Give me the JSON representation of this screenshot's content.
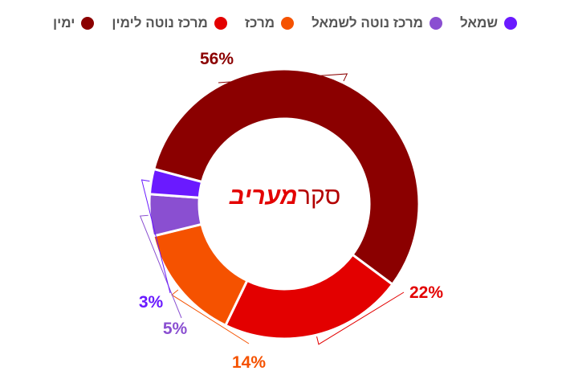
{
  "chart_data": {
    "type": "pie",
    "subtype": "donut",
    "center_label": {
      "word": "סקר",
      "brand": "מעריב"
    },
    "slices": [
      {
        "name": "ימין",
        "value": 56,
        "label": "56%",
        "color": "#8b0000"
      },
      {
        "name": "מרכז נוטה לימין",
        "value": 22,
        "label": "22%",
        "color": "#e30000"
      },
      {
        "name": "מרכז",
        "value": 14,
        "label": "14%",
        "color": "#f55200"
      },
      {
        "name": "מרכז נוטה לשמאל",
        "value": 5,
        "label": "5%",
        "color": "#8a4fd1"
      },
      {
        "name": "שמאל",
        "value": 3,
        "label": "3%",
        "color": "#6a1aff"
      }
    ],
    "legend_position": "top"
  },
  "colors": {
    "brand_red": "#e30000",
    "center_text": "#b30000",
    "legend_text": "#555555"
  }
}
